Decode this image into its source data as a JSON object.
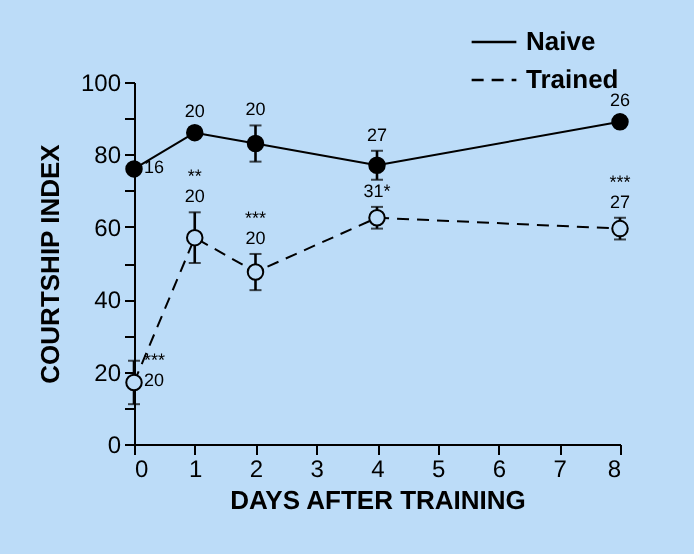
{
  "chart_data": {
    "type": "line",
    "xlabel": "DAYS AFTER TRAINING",
    "ylabel": "COURTSHIP INDEX",
    "x": [
      0,
      1,
      2,
      4,
      8
    ],
    "series": [
      {
        "name": "Naive",
        "color": "#000000",
        "line_style": "solid",
        "values": [
          76,
          86,
          83,
          77,
          89
        ],
        "errors": [
          1,
          1.5,
          5,
          4,
          1.5
        ]
      },
      {
        "name": "Trained",
        "color": "#000000",
        "line_style": "dashed",
        "values": [
          17,
          57,
          47.5,
          62.5,
          59.5
        ],
        "errors": [
          6,
          7,
          5,
          3,
          3
        ]
      }
    ],
    "xlim": [
      0,
      8
    ],
    "xticks": [
      0,
      1,
      2,
      3,
      4,
      5,
      6,
      7,
      8
    ],
    "ylim": [
      0,
      100
    ],
    "yticks": [
      0,
      {
        "value": 10,
        "label": null
      },
      20,
      {
        "value": 30,
        "label": null
      },
      40,
      {
        "value": 50,
        "label": null
      },
      60,
      {
        "value": 70,
        "label": null
      },
      80,
      {
        "value": 90,
        "label": null
      },
      100
    ],
    "marker": "circle",
    "legend": "top right",
    "grid": false,
    "annotations": [
      {
        "text": "16",
        "x": 0,
        "y": 76
      },
      {
        "text": "20",
        "x": 1,
        "y": 86
      },
      {
        "text": "20",
        "x": 2,
        "y": 83
      },
      {
        "text": "27",
        "x": 4,
        "y": 77
      },
      {
        "text": "26",
        "x": 8,
        "y": 89
      },
      {
        "text": "**",
        "x": 1,
        "y": 57
      },
      {
        "text": "20",
        "x": 1,
        "y": 57
      },
      {
        "text": "***",
        "x": 2,
        "y": 47.5
      },
      {
        "text": "20",
        "x": 2,
        "y": 47.5
      },
      {
        "text": "31*",
        "x": 4,
        "y": 62.5
      },
      {
        "text": "***",
        "x": 8,
        "y": 59.5
      },
      {
        "text": "27",
        "x": 8,
        "y": 59.5
      },
      {
        "text": "***",
        "x": 0,
        "y": 17
      },
      {
        "text": "20",
        "x": 0,
        "y": 17
      }
    ]
  }
}
